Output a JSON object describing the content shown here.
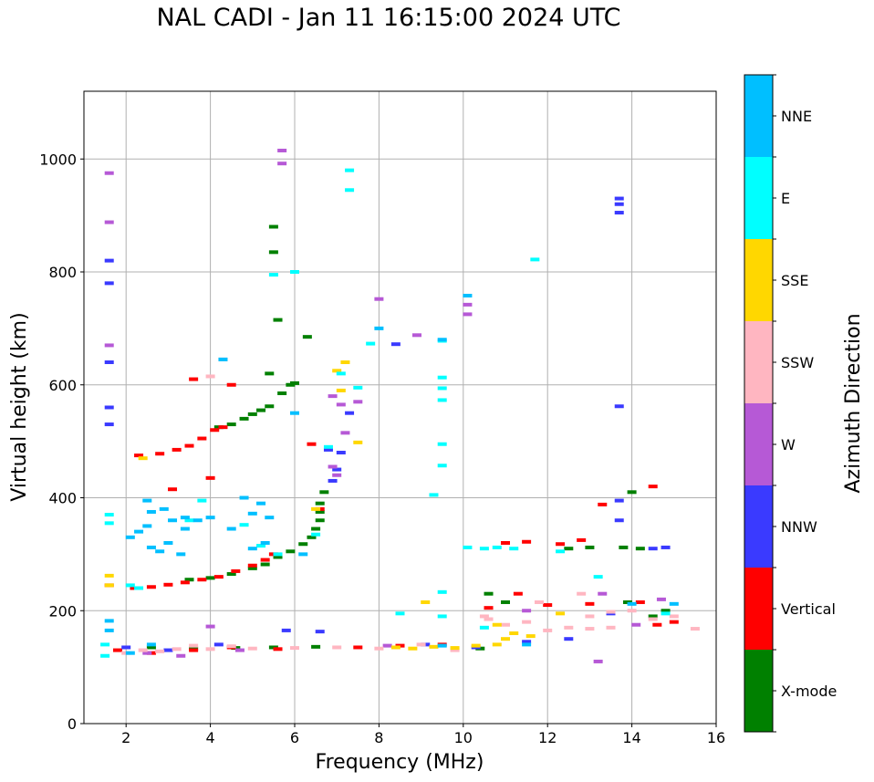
{
  "chart_data": {
    "type": "scatter",
    "title": "NAL CADI - Jan 11 16:15:00 2024 UTC",
    "xlabel": "Frequency (MHz)",
    "ylabel": "Virtual height (km)",
    "xlim": [
      1,
      16
    ],
    "ylim": [
      0,
      1120
    ],
    "xticks": [
      2,
      4,
      6,
      8,
      10,
      12,
      14,
      16
    ],
    "yticks": [
      0,
      200,
      400,
      600,
      800,
      1000
    ],
    "grid": true,
    "colorbar": {
      "label": "Azimuth Direction",
      "categories": [
        {
          "name": "X-mode",
          "color": "#008000"
        },
        {
          "name": "Vertical",
          "color": "#ff0000"
        },
        {
          "name": "NNW",
          "color": "#3a3aff"
        },
        {
          "name": "W",
          "color": "#b659d6"
        },
        {
          "name": "SSW",
          "color": "#ffb6c1"
        },
        {
          "name": "SSE",
          "color": "#ffd700"
        },
        {
          "name": "E",
          "color": "#00ffff"
        },
        {
          "name": "NNE",
          "color": "#00bfff"
        }
      ]
    },
    "series": [
      {
        "name": "X-mode",
        "points": [
          [
            4.2,
            525
          ],
          [
            4.5,
            530
          ],
          [
            4.8,
            540
          ],
          [
            5.0,
            548
          ],
          [
            5.2,
            555
          ],
          [
            5.4,
            562
          ],
          [
            5.7,
            585
          ],
          [
            5.9,
            600
          ],
          [
            6.0,
            603
          ],
          [
            3.5,
            255
          ],
          [
            4.0,
            258
          ],
          [
            4.5,
            265
          ],
          [
            5.0,
            275
          ],
          [
            5.3,
            282
          ],
          [
            5.6,
            295
          ],
          [
            5.9,
            305
          ],
          [
            6.2,
            318
          ],
          [
            6.4,
            330
          ],
          [
            6.5,
            345
          ],
          [
            6.6,
            360
          ],
          [
            6.6,
            375
          ],
          [
            6.6,
            390
          ],
          [
            6.7,
            410
          ],
          [
            5.5,
            880
          ],
          [
            5.5,
            835
          ],
          [
            5.6,
            715
          ],
          [
            6.3,
            685
          ],
          [
            5.4,
            620
          ],
          [
            2.6,
            135
          ],
          [
            3.6,
            133
          ],
          [
            4.6,
            134
          ],
          [
            5.5,
            135
          ],
          [
            6.5,
            136
          ],
          [
            10.4,
            133
          ],
          [
            10.6,
            230
          ],
          [
            11.0,
            215
          ],
          [
            12.5,
            310
          ],
          [
            13.0,
            312
          ],
          [
            13.8,
            312
          ],
          [
            14.2,
            310
          ],
          [
            14.0,
            410
          ],
          [
            14.5,
            190
          ],
          [
            14.8,
            200
          ],
          [
            13.9,
            215
          ]
        ]
      },
      {
        "name": "Vertical",
        "points": [
          [
            2.3,
            475
          ],
          [
            2.8,
            478
          ],
          [
            3.2,
            485
          ],
          [
            3.5,
            492
          ],
          [
            3.8,
            505
          ],
          [
            4.1,
            520
          ],
          [
            4.3,
            525
          ],
          [
            2.2,
            240
          ],
          [
            2.6,
            242
          ],
          [
            3.0,
            246
          ],
          [
            3.4,
            250
          ],
          [
            3.8,
            255
          ],
          [
            4.2,
            260
          ],
          [
            4.6,
            270
          ],
          [
            5.0,
            280
          ],
          [
            5.3,
            290
          ],
          [
            5.5,
            300
          ],
          [
            1.6,
            245
          ],
          [
            1.8,
            130
          ],
          [
            2.6,
            125
          ],
          [
            3.6,
            130
          ],
          [
            4.5,
            135
          ],
          [
            5.6,
            132
          ],
          [
            7.5,
            135
          ],
          [
            8.5,
            138
          ],
          [
            9.5,
            140
          ],
          [
            11.0,
            320
          ],
          [
            11.5,
            322
          ],
          [
            12.3,
            318
          ],
          [
            12.8,
            325
          ],
          [
            13.3,
            388
          ],
          [
            14.5,
            420
          ],
          [
            11.3,
            230
          ],
          [
            12.0,
            210
          ],
          [
            13.0,
            212
          ],
          [
            14.2,
            215
          ],
          [
            14.6,
            175
          ],
          [
            15.0,
            180
          ],
          [
            6.4,
            495
          ],
          [
            3.6,
            610
          ],
          [
            4.0,
            435
          ],
          [
            3.1,
            415
          ],
          [
            4.5,
            600
          ],
          [
            6.6,
            380
          ],
          [
            10.6,
            205
          ]
        ]
      },
      {
        "name": "NNW",
        "points": [
          [
            13.7,
            930
          ],
          [
            13.7,
            905
          ],
          [
            13.7,
            920
          ],
          [
            13.7,
            562
          ],
          [
            13.7,
            360
          ],
          [
            13.7,
            395
          ],
          [
            7.0,
            450
          ],
          [
            6.9,
            430
          ],
          [
            7.1,
            480
          ],
          [
            7.3,
            550
          ],
          [
            6.8,
            485
          ],
          [
            8.4,
            672
          ],
          [
            14.5,
            310
          ],
          [
            14.8,
            312
          ],
          [
            11.5,
            145
          ],
          [
            12.5,
            150
          ],
          [
            13.5,
            195
          ],
          [
            1.6,
            820
          ],
          [
            1.6,
            780
          ],
          [
            1.6,
            640
          ],
          [
            1.6,
            560
          ],
          [
            1.6,
            530
          ],
          [
            6.6,
            163
          ],
          [
            5.8,
            165
          ],
          [
            4.2,
            140
          ],
          [
            2.0,
            135
          ],
          [
            3.0,
            130
          ],
          [
            9.1,
            140
          ],
          [
            10.3,
            135
          ]
        ]
      },
      {
        "name": "W",
        "points": [
          [
            5.7,
            1015
          ],
          [
            5.7,
            992
          ],
          [
            1.6,
            975
          ],
          [
            1.6,
            888
          ],
          [
            8.9,
            688
          ],
          [
            10.1,
            742
          ],
          [
            10.1,
            725
          ],
          [
            7.1,
            565
          ],
          [
            7.2,
            515
          ],
          [
            6.9,
            455
          ],
          [
            7.0,
            440
          ],
          [
            4.0,
            172
          ],
          [
            13.2,
            110
          ],
          [
            14.7,
            220
          ],
          [
            1.6,
            670
          ],
          [
            6.9,
            580
          ],
          [
            7.5,
            570
          ],
          [
            8.0,
            752
          ],
          [
            13.3,
            230
          ],
          [
            11.5,
            200
          ],
          [
            14.1,
            175
          ],
          [
            2.5,
            125
          ],
          [
            3.3,
            120
          ],
          [
            4.7,
            130
          ],
          [
            8.2,
            138
          ]
        ]
      },
      {
        "name": "SSW",
        "points": [
          [
            2.0,
            125
          ],
          [
            2.4,
            130
          ],
          [
            2.8,
            128
          ],
          [
            3.2,
            132
          ],
          [
            3.6,
            138
          ],
          [
            4.0,
            132
          ],
          [
            4.5,
            137
          ],
          [
            5.0,
            133
          ],
          [
            6.0,
            134
          ],
          [
            7.0,
            135
          ],
          [
            8.0,
            133
          ],
          [
            9.0,
            140
          ],
          [
            10.5,
            190
          ],
          [
            11.0,
            175
          ],
          [
            11.5,
            180
          ],
          [
            12.0,
            165
          ],
          [
            12.5,
            170
          ],
          [
            13.0,
            168
          ],
          [
            13.5,
            170
          ],
          [
            14.0,
            200
          ],
          [
            14.5,
            185
          ],
          [
            15.0,
            190
          ],
          [
            15.5,
            168
          ],
          [
            13.0,
            190
          ],
          [
            12.8,
            230
          ],
          [
            13.5,
            198
          ],
          [
            4.0,
            615
          ],
          [
            4.3,
            645
          ],
          [
            10.6,
            185
          ],
          [
            11.8,
            215
          ],
          [
            9.8,
            130
          ]
        ]
      },
      {
        "name": "SSE",
        "points": [
          [
            8.4,
            135
          ],
          [
            8.8,
            133
          ],
          [
            9.3,
            136
          ],
          [
            9.8,
            134
          ],
          [
            10.3,
            138
          ],
          [
            10.8,
            140
          ],
          [
            11.0,
            150
          ],
          [
            9.1,
            215
          ],
          [
            7.1,
            590
          ],
          [
            7.0,
            625
          ],
          [
            7.2,
            640
          ],
          [
            7.5,
            498
          ],
          [
            6.5,
            380
          ],
          [
            1.6,
            245
          ],
          [
            1.6,
            262
          ],
          [
            2.4,
            470
          ],
          [
            10.8,
            175
          ],
          [
            11.2,
            160
          ],
          [
            11.6,
            155
          ],
          [
            12.3,
            195
          ]
        ]
      },
      {
        "name": "E",
        "points": [
          [
            7.3,
            980
          ],
          [
            7.3,
            945
          ],
          [
            11.7,
            822
          ],
          [
            6.0,
            800
          ],
          [
            5.5,
            795
          ],
          [
            7.1,
            620
          ],
          [
            7.5,
            595
          ],
          [
            9.5,
            678
          ],
          [
            9.5,
            613
          ],
          [
            9.5,
            594
          ],
          [
            9.5,
            573
          ],
          [
            9.5,
            495
          ],
          [
            9.5,
            457
          ],
          [
            9.3,
            405
          ],
          [
            9.5,
            233
          ],
          [
            9.5,
            190
          ],
          [
            10.1,
            312
          ],
          [
            10.5,
            310
          ],
          [
            10.8,
            312
          ],
          [
            11.2,
            310
          ],
          [
            12.3,
            305
          ],
          [
            13.2,
            260
          ],
          [
            14.8,
            195
          ],
          [
            1.6,
            370
          ],
          [
            1.6,
            355
          ],
          [
            1.5,
            120
          ],
          [
            1.5,
            140
          ],
          [
            2.1,
            245
          ],
          [
            2.3,
            240
          ],
          [
            3.5,
            360
          ],
          [
            3.8,
            395
          ],
          [
            4.8,
            352
          ],
          [
            5.2,
            315
          ],
          [
            5.6,
            300
          ],
          [
            6.5,
            335
          ],
          [
            6.8,
            490
          ],
          [
            7.8,
            673
          ],
          [
            8.5,
            195
          ],
          [
            10.5,
            170
          ]
        ]
      },
      {
        "name": "NNE",
        "points": [
          [
            2.1,
            330
          ],
          [
            2.3,
            340
          ],
          [
            2.5,
            350
          ],
          [
            2.6,
            375
          ],
          [
            2.5,
            395
          ],
          [
            2.9,
            380
          ],
          [
            3.1,
            360
          ],
          [
            3.4,
            365
          ],
          [
            3.7,
            360
          ],
          [
            3.4,
            345
          ],
          [
            3.0,
            320
          ],
          [
            2.8,
            305
          ],
          [
            3.3,
            300
          ],
          [
            2.6,
            312
          ],
          [
            4.0,
            365
          ],
          [
            4.5,
            345
          ],
          [
            5.0,
            372
          ],
          [
            5.4,
            365
          ],
          [
            4.8,
            400
          ],
          [
            5.2,
            390
          ],
          [
            4.3,
            645
          ],
          [
            8.0,
            700
          ],
          [
            9.5,
            680
          ],
          [
            10.1,
            758
          ],
          [
            6.0,
            550
          ],
          [
            5.0,
            310
          ],
          [
            5.3,
            320
          ],
          [
            2.1,
            125
          ],
          [
            2.6,
            140
          ],
          [
            1.6,
            182
          ],
          [
            1.6,
            165
          ],
          [
            11.5,
            140
          ],
          [
            14.0,
            212
          ],
          [
            15.0,
            212
          ],
          [
            9.5,
            138
          ],
          [
            6.2,
            300
          ]
        ]
      }
    ]
  }
}
